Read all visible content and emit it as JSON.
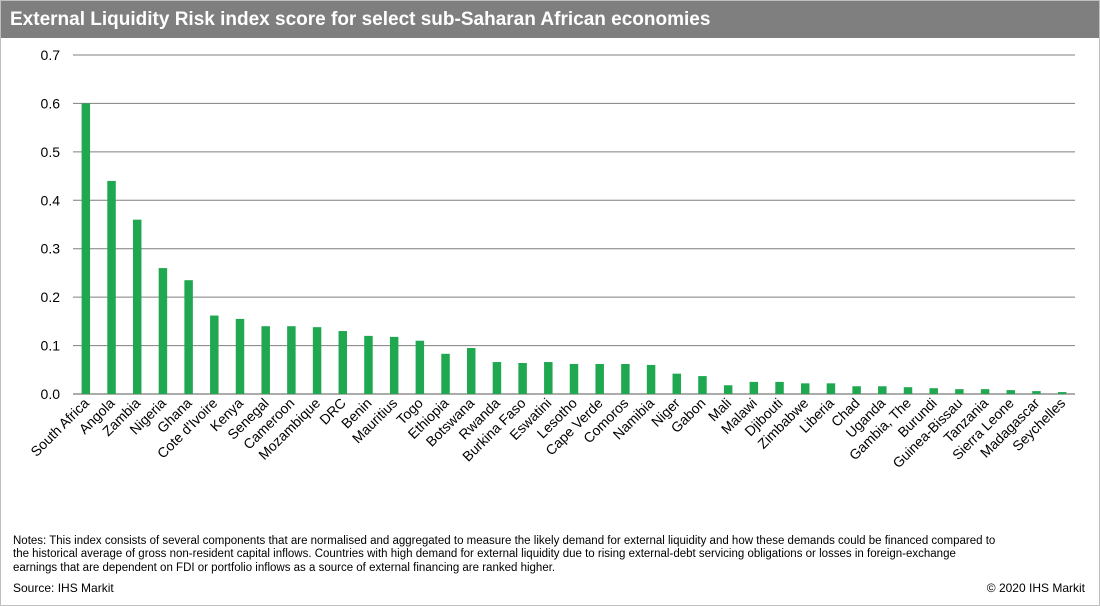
{
  "chart_data": {
    "type": "bar",
    "title": "External Liquidity Risk index score for select sub-Saharan African economies",
    "categories": [
      "South Africa",
      "Angola",
      "Zambia",
      "Nigeria",
      "Ghana",
      "Cote d'Ivoire",
      "Kenya",
      "Senegal",
      "Cameroon",
      "Mozambique",
      "DRC",
      "Benin",
      "Mauritius",
      "Togo",
      "Ethiopia",
      "Botswana",
      "Rwanda",
      "Burkina Faso",
      "Eswatini",
      "Lesotho",
      "Cape Verde",
      "Comoros",
      "Namibia",
      "Niger",
      "Gabon",
      "Mali",
      "Malawi",
      "Djibouti",
      "Zimbabwe",
      "Liberia",
      "Chad",
      "Uganda",
      "Gambia, The",
      "Burundi",
      "Guinea-Bissau",
      "Tanzania",
      "Sierra Leone",
      "Madagascar",
      "Seychelles"
    ],
    "values": [
      0.6,
      0.44,
      0.36,
      0.26,
      0.235,
      0.162,
      0.155,
      0.14,
      0.14,
      0.138,
      0.13,
      0.12,
      0.118,
      0.11,
      0.083,
      0.095,
      0.066,
      0.064,
      0.066,
      0.062,
      0.062,
      0.062,
      0.06,
      0.042,
      0.037,
      0.018,
      0.025,
      0.025,
      0.022,
      0.022,
      0.016,
      0.016,
      0.014,
      0.012,
      0.01,
      0.01,
      0.008,
      0.006,
      0.004
    ],
    "ylim": [
      0,
      0.7
    ],
    "yticks": [
      0.0,
      0.1,
      0.2,
      0.3,
      0.4,
      0.5,
      0.6,
      0.7
    ],
    "ytick_labels": [
      "0.0",
      "0.1",
      "0.2",
      "0.3",
      "0.4",
      "0.5",
      "0.6",
      "0.7"
    ],
    "xlabel": "",
    "ylabel": "",
    "grid": true,
    "bar_color": "#1fa84f"
  },
  "notes": "Notes: This index consists of several components that are normalised and aggregated to measure the likely demand for external liquidity and how these demands could be financed compared to\nthe historical average of gross non-resident capital inflows. Countries with high demand for external liquidity due to rising external-debt servicing obligations or losses in foreign-exchange\nearnings that are dependent on FDI or portfolio inflows as a source of external financing are ranked higher.",
  "source": "Source: IHS Markit",
  "copyright": "© 2020 IHS Markit"
}
